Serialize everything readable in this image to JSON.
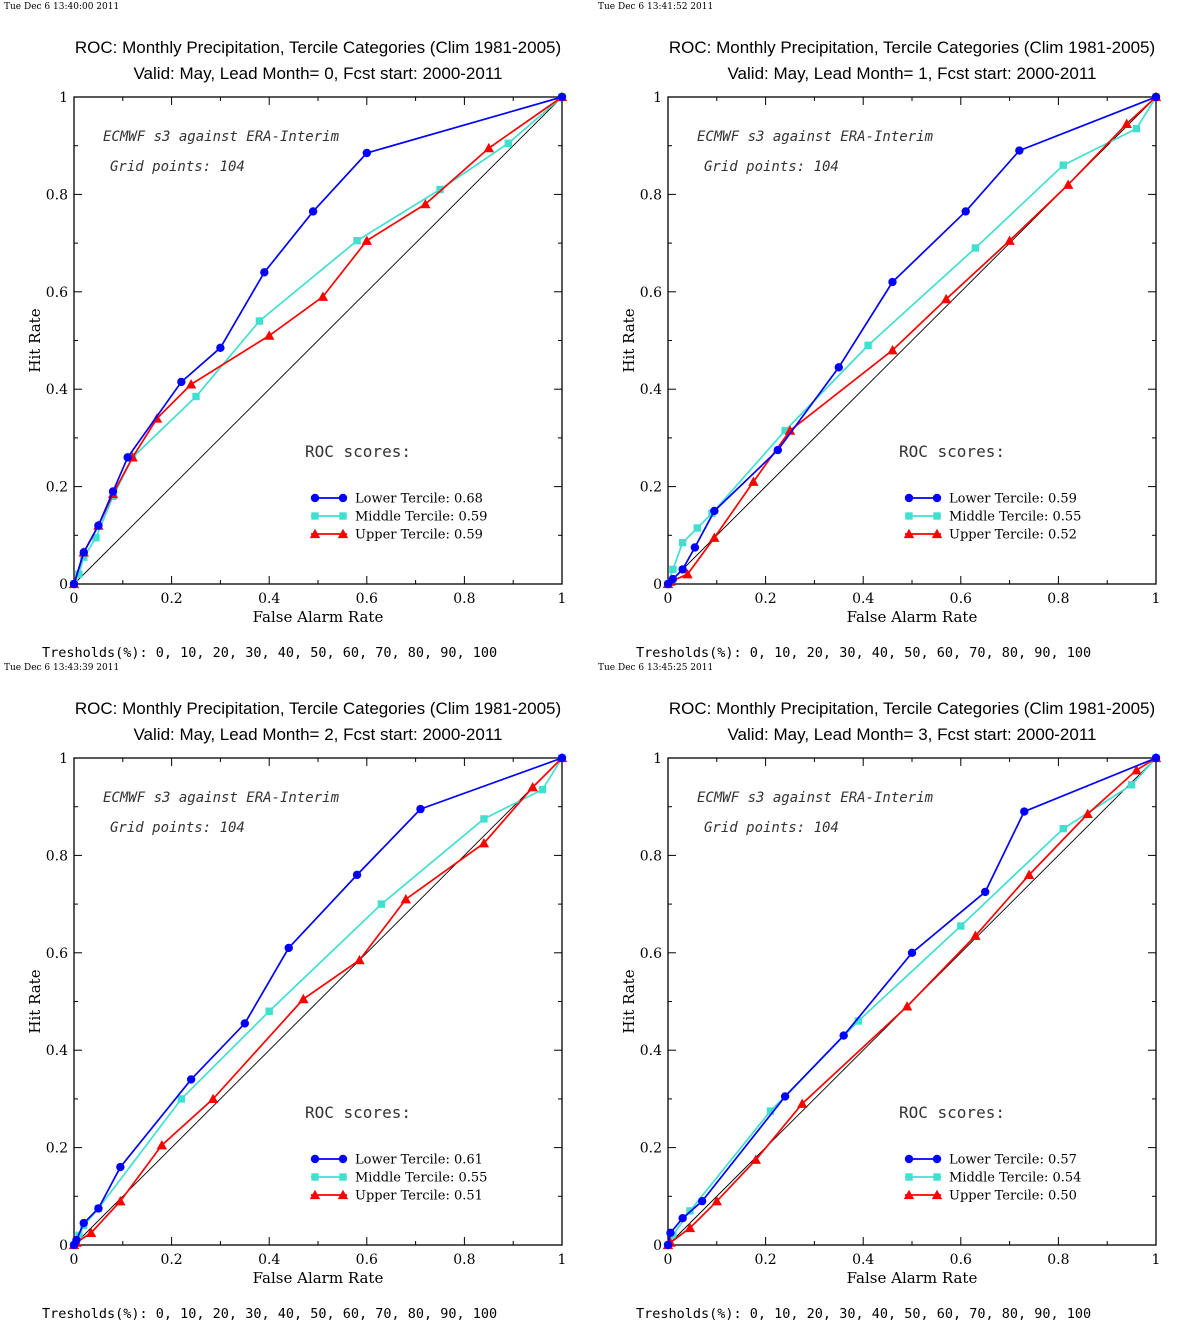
{
  "chart_data": [
    {
      "type": "line",
      "timestamp": "Tue Dec  6 13:40:00 2011",
      "title": "ROC: Monthly Precipitation, Tercile Categories (Clim 1981-2005)",
      "subtitle": "Valid: May, Lead Month= 0, Fcst start: 2000-2011",
      "xlabel": "False Alarm Rate",
      "ylabel": "Hit Rate",
      "xlim": [
        0,
        1
      ],
      "ylim": [
        0,
        1
      ],
      "xticks": [
        "0",
        "0.2",
        "0.4",
        "0.6",
        "0.8",
        "1"
      ],
      "yticks": [
        "0",
        "0.2",
        "0.4",
        "0.6",
        "0.8",
        "1"
      ],
      "annotations": [
        "ECMWF s3 against ERA-Interim",
        "Grid points:  104"
      ],
      "roc_header": "ROC scores:",
      "thresholds": "Tresholds(%): 0, 10, 20, 30, 40, 50, 60, 70, 80, 90, 100",
      "series": [
        {
          "name": "Lower Tercile: 0.68",
          "color": "#0000ff",
          "marker": "circle",
          "x": [
            0,
            0.02,
            0.05,
            0.08,
            0.11,
            0.22,
            0.3,
            0.39,
            0.49,
            0.6,
            1.0
          ],
          "y": [
            0,
            0.065,
            0.12,
            0.19,
            0.26,
            0.415,
            0.485,
            0.64,
            0.765,
            0.885,
            1.0
          ]
        },
        {
          "name": "Middle Tercile: 0.59",
          "color": "#40e0d0",
          "marker": "square",
          "x": [
            0,
            0.01,
            0.02,
            0.045,
            0.08,
            0.12,
            0.25,
            0.38,
            0.58,
            0.75,
            0.89,
            1.0
          ],
          "y": [
            0,
            0.02,
            0.055,
            0.095,
            0.18,
            0.26,
            0.385,
            0.54,
            0.705,
            0.81,
            0.905,
            1.0
          ]
        },
        {
          "name": "Upper Tercile: 0.59",
          "color": "#ff0000",
          "marker": "triangle",
          "x": [
            0,
            0.02,
            0.05,
            0.08,
            0.12,
            0.17,
            0.24,
            0.4,
            0.51,
            0.6,
            0.72,
            0.85,
            1.0
          ],
          "y": [
            0,
            0.065,
            0.12,
            0.185,
            0.26,
            0.34,
            0.41,
            0.51,
            0.59,
            0.705,
            0.78,
            0.895,
            1.0
          ]
        }
      ]
    },
    {
      "type": "line",
      "timestamp": "Tue Dec  6 13:41:52 2011",
      "title": "ROC: Monthly Precipitation, Tercile Categories (Clim 1981-2005)",
      "subtitle": "Valid: May, Lead Month= 1, Fcst start: 2000-2011",
      "xlabel": "False Alarm Rate",
      "ylabel": "Hit Rate",
      "xlim": [
        0,
        1
      ],
      "ylim": [
        0,
        1
      ],
      "xticks": [
        "0",
        "0.2",
        "0.4",
        "0.6",
        "0.8",
        "1"
      ],
      "yticks": [
        "0",
        "0.2",
        "0.4",
        "0.6",
        "0.8",
        "1"
      ],
      "annotations": [
        "ECMWF s3 against ERA-Interim",
        "Grid points:  104"
      ],
      "roc_header": "ROC scores:",
      "thresholds": "Tresholds(%): 0, 10, 20, 30, 40, 50, 60, 70, 80, 90, 100",
      "series": [
        {
          "name": "Lower Tercile: 0.59",
          "color": "#0000ff",
          "marker": "circle",
          "x": [
            0,
            0.01,
            0.03,
            0.055,
            0.095,
            0.225,
            0.35,
            0.46,
            0.61,
            0.72,
            1.0
          ],
          "y": [
            0,
            0.01,
            0.03,
            0.075,
            0.15,
            0.275,
            0.445,
            0.62,
            0.765,
            0.89,
            1.0
          ]
        },
        {
          "name": "Middle Tercile: 0.55",
          "color": "#40e0d0",
          "marker": "square",
          "x": [
            0,
            0.01,
            0.03,
            0.06,
            0.09,
            0.24,
            0.41,
            0.63,
            0.81,
            0.96,
            1.0
          ],
          "y": [
            0,
            0.03,
            0.085,
            0.115,
            0.145,
            0.315,
            0.49,
            0.69,
            0.86,
            0.935,
            1.0
          ]
        },
        {
          "name": "Upper Tercile: 0.52",
          "color": "#ff0000",
          "marker": "triangle",
          "x": [
            0,
            0.005,
            0.04,
            0.095,
            0.175,
            0.25,
            0.46,
            0.57,
            0.7,
            0.82,
            0.94,
            1.0
          ],
          "y": [
            0,
            0.005,
            0.02,
            0.095,
            0.21,
            0.315,
            0.48,
            0.585,
            0.705,
            0.82,
            0.945,
            1.0
          ]
        }
      ]
    },
    {
      "type": "line",
      "timestamp": "Tue Dec  6 13:43:39 2011",
      "title": "ROC: Monthly Precipitation, Tercile Categories (Clim 1981-2005)",
      "subtitle": "Valid: May, Lead Month= 2, Fcst start: 2000-2011",
      "xlabel": "False Alarm Rate",
      "ylabel": "Hit Rate",
      "xlim": [
        0,
        1
      ],
      "ylim": [
        0,
        1
      ],
      "xticks": [
        "0",
        "0.2",
        "0.4",
        "0.6",
        "0.8",
        "1"
      ],
      "yticks": [
        "0",
        "0.2",
        "0.4",
        "0.6",
        "0.8",
        "1"
      ],
      "annotations": [
        "ECMWF s3 against ERA-Interim",
        "Grid points:  104"
      ],
      "roc_header": "ROC scores:",
      "thresholds": "Tresholds(%): 0, 10, 20, 30, 40, 50, 60, 70, 80, 90, 100",
      "series": [
        {
          "name": "Lower Tercile: 0.61",
          "color": "#0000ff",
          "marker": "circle",
          "x": [
            0,
            0.005,
            0.02,
            0.05,
            0.095,
            0.24,
            0.35,
            0.44,
            0.58,
            0.71,
            1.0
          ],
          "y": [
            0,
            0.01,
            0.045,
            0.075,
            0.16,
            0.34,
            0.455,
            0.61,
            0.76,
            0.895,
            1.0
          ]
        },
        {
          "name": "Middle Tercile: 0.55",
          "color": "#40e0d0",
          "marker": "square",
          "x": [
            0,
            0.01,
            0.02,
            0.05,
            0.22,
            0.4,
            0.63,
            0.84,
            0.96,
            1.0
          ],
          "y": [
            0,
            0.02,
            0.04,
            0.075,
            0.3,
            0.48,
            0.7,
            0.875,
            0.935,
            1.0
          ]
        },
        {
          "name": "Upper Tercile: 0.51",
          "color": "#ff0000",
          "marker": "triangle",
          "x": [
            0,
            0.005,
            0.035,
            0.095,
            0.18,
            0.285,
            0.47,
            0.585,
            0.68,
            0.84,
            0.94,
            1.0
          ],
          "y": [
            0,
            0.005,
            0.025,
            0.09,
            0.205,
            0.3,
            0.505,
            0.585,
            0.71,
            0.825,
            0.94,
            1.0
          ]
        }
      ]
    },
    {
      "type": "line",
      "timestamp": "Tue Dec  6 13:45:25 2011",
      "title": "ROC: Monthly Precipitation, Tercile Categories (Clim 1981-2005)",
      "subtitle": "Valid: May, Lead Month= 3, Fcst start: 2000-2011",
      "xlabel": "False Alarm Rate",
      "ylabel": "Hit Rate",
      "xlim": [
        0,
        1
      ],
      "ylim": [
        0,
        1
      ],
      "xticks": [
        "0",
        "0.2",
        "0.4",
        "0.6",
        "0.8",
        "1"
      ],
      "yticks": [
        "0",
        "0.2",
        "0.4",
        "0.6",
        "0.8",
        "1"
      ],
      "annotations": [
        "ECMWF s3 against ERA-Interim",
        "Grid points:  104"
      ],
      "roc_header": "ROC scores:",
      "thresholds": "Tresholds(%): 0, 10, 20, 30, 40, 50, 60, 70, 80, 90, 100",
      "series": [
        {
          "name": "Lower Tercile: 0.57",
          "color": "#0000ff",
          "marker": "circle",
          "x": [
            0,
            0.005,
            0.03,
            0.07,
            0.24,
            0.36,
            0.5,
            0.65,
            0.73,
            1.0
          ],
          "y": [
            0,
            0.025,
            0.055,
            0.09,
            0.305,
            0.43,
            0.6,
            0.725,
            0.89,
            1.0
          ]
        },
        {
          "name": "Middle Tercile: 0.54",
          "color": "#40e0d0",
          "marker": "square",
          "x": [
            0,
            0.01,
            0.045,
            0.21,
            0.39,
            0.6,
            0.81,
            0.95,
            1.0
          ],
          "y": [
            0,
            0.02,
            0.07,
            0.275,
            0.46,
            0.655,
            0.855,
            0.945,
            1.0
          ]
        },
        {
          "name": "Upper Tercile: 0.50",
          "color": "#ff0000",
          "marker": "triangle",
          "x": [
            0,
            0.005,
            0.045,
            0.1,
            0.18,
            0.275,
            0.49,
            0.63,
            0.74,
            0.86,
            0.96,
            1.0
          ],
          "y": [
            0,
            0.005,
            0.035,
            0.09,
            0.175,
            0.29,
            0.49,
            0.635,
            0.76,
            0.885,
            0.975,
            1.0
          ]
        }
      ]
    }
  ]
}
